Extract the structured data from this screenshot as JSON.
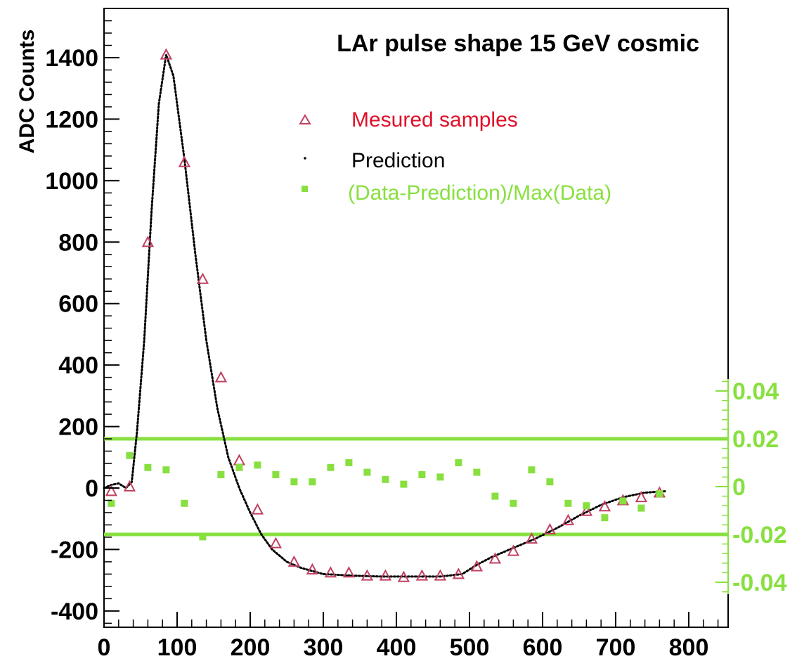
{
  "chart_data": {
    "type": "scatter",
    "title": "LAr pulse shape 15 GeV cosmic",
    "xlabel": "",
    "ylabel": "ADC Counts",
    "xlim": [
      0,
      850
    ],
    "ylim": [
      -450,
      1550
    ],
    "x_ticks": [
      "0",
      "100",
      "200",
      "300",
      "400",
      "500",
      "600",
      "700",
      "800"
    ],
    "y_ticks": [
      "-400",
      "-200",
      "0",
      "200",
      "400",
      "600",
      "800",
      "1000",
      "1200",
      "1400"
    ],
    "right_axis": {
      "ylim": [
        -0.045,
        0.045
      ],
      "ticks": [
        "-0.04",
        "-0.02",
        "0",
        "0.02",
        "0.04"
      ],
      "color": "#88e040"
    },
    "reference_lines": [
      0.02,
      -0.02
    ],
    "legend": {
      "position": "top-right",
      "entries": [
        {
          "label": "Mesured samples",
          "color": "#e0102a",
          "marker": "triangle"
        },
        {
          "label": "Prediction",
          "color": "#000000",
          "marker": "dot"
        },
        {
          "label": "(Data-Prediction)/Max(Data)",
          "color": "#88e040",
          "marker": "square"
        }
      ]
    },
    "series": [
      {
        "name": "Mesured samples",
        "color": "#e0102a",
        "marker": "triangle",
        "x": [
          10,
          35,
          60,
          85,
          110,
          135,
          160,
          185,
          210,
          235,
          260,
          285,
          310,
          335,
          360,
          385,
          410,
          435,
          460,
          485,
          510,
          535,
          560,
          585,
          610,
          635,
          660,
          685,
          710,
          735,
          760
        ],
        "y": [
          -10,
          5,
          800,
          1410,
          1060,
          680,
          360,
          90,
          -70,
          -180,
          -240,
          -265,
          -275,
          -275,
          -285,
          -285,
          -290,
          -285,
          -285,
          -280,
          -255,
          -230,
          -205,
          -165,
          -135,
          -105,
          -75,
          -60,
          -40,
          -30,
          -15
        ]
      },
      {
        "name": "Prediction",
        "color": "#000000",
        "marker": "dot",
        "x": [
          0,
          10,
          20,
          30,
          38,
          45,
          55,
          65,
          75,
          85,
          95,
          110,
          125,
          140,
          155,
          170,
          185,
          200,
          215,
          230,
          250,
          270,
          300,
          340,
          380,
          420,
          460,
          490,
          510,
          530,
          560,
          590,
          620,
          650,
          680,
          710,
          740,
          770
        ],
        "y": [
          0,
          10,
          15,
          0,
          20,
          180,
          480,
          900,
          1250,
          1410,
          1340,
          1070,
          760,
          480,
          260,
          100,
          0,
          -80,
          -150,
          -200,
          -240,
          -260,
          -280,
          -285,
          -288,
          -288,
          -288,
          -280,
          -250,
          -225,
          -195,
          -165,
          -130,
          -90,
          -55,
          -30,
          -15,
          -10
        ]
      },
      {
        "name": "(Data-Prediction)/Max(Data)",
        "color": "#88e040",
        "marker": "square",
        "x": [
          10,
          35,
          60,
          85,
          110,
          135,
          160,
          185,
          210,
          235,
          260,
          285,
          310,
          335,
          360,
          385,
          410,
          435,
          460,
          485,
          510,
          535,
          560,
          585,
          610,
          635,
          660,
          685,
          710,
          735,
          760
        ],
        "y": [
          -0.007,
          0.013,
          0.008,
          0.007,
          -0.007,
          -0.021,
          0.005,
          0.008,
          0.009,
          0.005,
          0.002,
          0.002,
          0.008,
          0.01,
          0.006,
          0.003,
          0.001,
          0.005,
          0.004,
          0.01,
          0.006,
          -0.004,
          -0.007,
          0.007,
          0.002,
          -0.007,
          -0.008,
          -0.013,
          -0.006,
          -0.009,
          -0.003
        ]
      }
    ]
  }
}
